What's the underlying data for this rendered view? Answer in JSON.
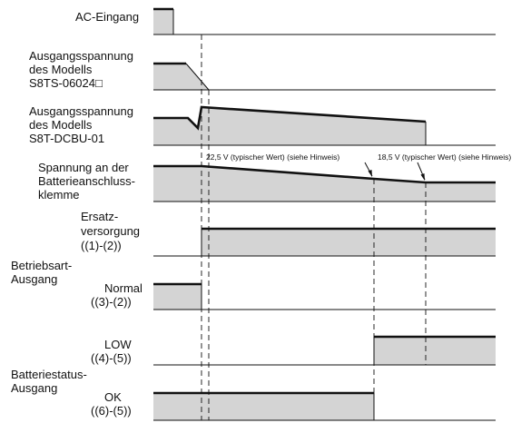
{
  "signals": {
    "ac_input": "AC-Eingang",
    "s8ts_output": [
      "Ausgangsspannung",
      "des Modells",
      "S8TS-06024□"
    ],
    "dcbu_output": [
      "Ausgangsspannung",
      "des Modells",
      "S8T-DCBU-01"
    ],
    "battery_terminal": [
      "Spannung an der",
      "Batterieanschluss-",
      "klemme"
    ],
    "backup": [
      "Ersatz-",
      "versorgung",
      "((1)-(2))"
    ],
    "mode_output": [
      "Betriebsart-",
      "Ausgang"
    ],
    "normal": [
      "Normal",
      "((3)-(2))"
    ],
    "low": [
      "LOW",
      "((4)-(5))"
    ],
    "battery_status": [
      "Batteriestatus-",
      "Ausgang"
    ],
    "ok": [
      "OK",
      "((6)-(5))"
    ]
  },
  "notes": {
    "v225": "22,5 V (typischer Wert) (siehe Hinweis)",
    "v185": "18,5 V (typischer Wert) (siehe Hinweis)"
  }
}
